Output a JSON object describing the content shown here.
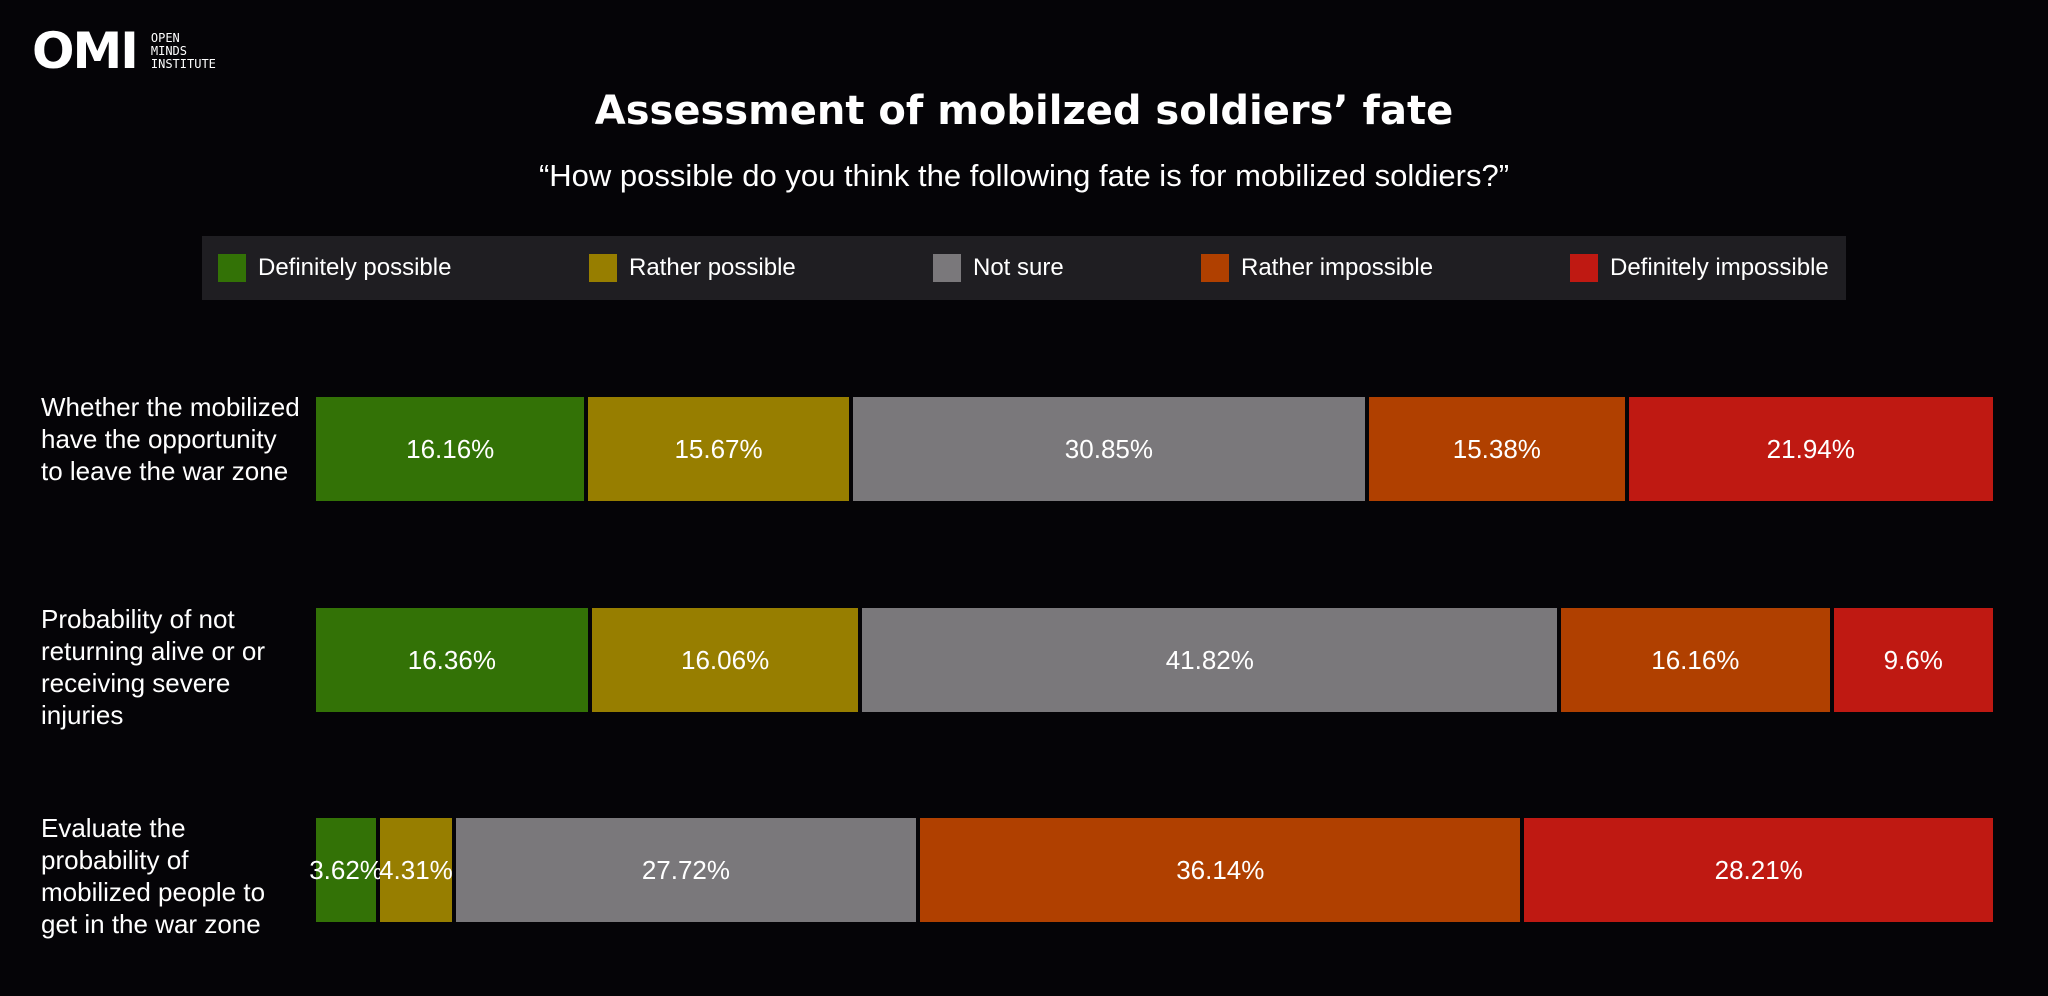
{
  "logo": {
    "mark": "OMI",
    "sub": "OPEN\nMINDS\nINSTITUTE"
  },
  "chart_data": {
    "type": "bar",
    "orientation": "horizontal",
    "stacked": true,
    "normalized": true,
    "title": "Assessment of mobilzed soldiers’ fate",
    "subtitle": "“How possible do you think the following fate is for mobilized soldiers?”",
    "legend_position": "top",
    "categories": [
      "Whether the mobilized have the opportunity to leave the war zone",
      "Probability of not returning alive or or receiving severe injuries",
      "Evaluate the probability of mobilized people to get in the war zone"
    ],
    "series": [
      {
        "name": "Definitely possible",
        "color": "#337206",
        "values": [
          16.16,
          16.36,
          3.62
        ],
        "labels": [
          "16.16%",
          "16.36%",
          "3.62%"
        ]
      },
      {
        "name": "Rather possible",
        "color": "#977e00",
        "values": [
          15.67,
          16.06,
          4.31
        ],
        "labels": [
          "15.67%",
          "16.06%",
          "4.31%"
        ]
      },
      {
        "name": "Not sure",
        "color": "#7a787b",
        "values": [
          30.85,
          41.82,
          27.72
        ],
        "labels": [
          "30.85%",
          "41.82%",
          "27.72%"
        ]
      },
      {
        "name": "Rather impossible",
        "color": "#b04000",
        "values": [
          15.38,
          16.16,
          36.14
        ],
        "labels": [
          "15.38%",
          "16.16%",
          "36.14%"
        ]
      },
      {
        "name": "Definitely impossible",
        "color": "#bf1912",
        "values": [
          21.94,
          9.6,
          28.21
        ],
        "labels": [
          "21.94%",
          "9.6%",
          "28.21%"
        ]
      }
    ]
  }
}
